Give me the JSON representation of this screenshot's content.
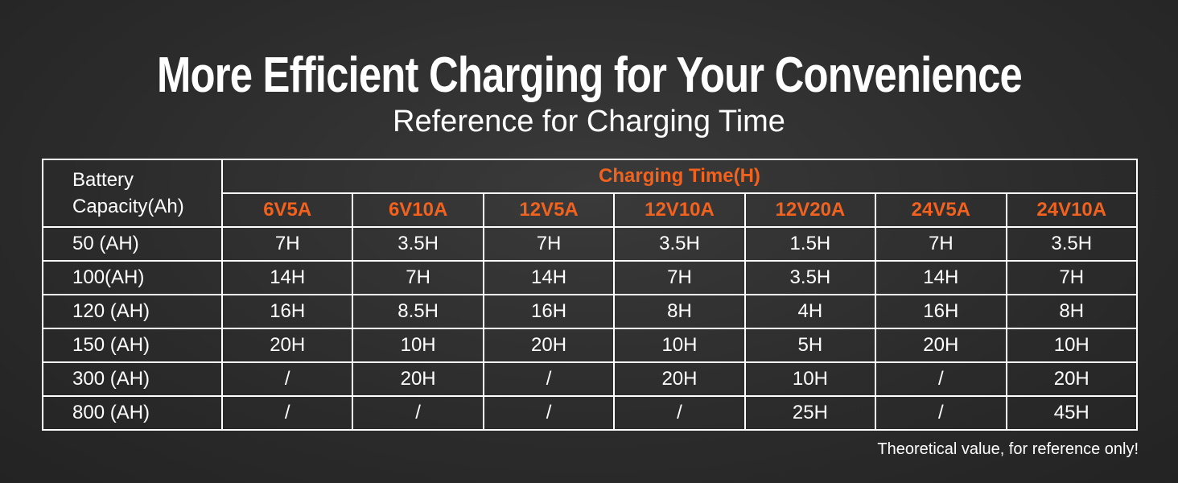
{
  "header": {
    "title": "More Efficient Charging for Your Convenience",
    "subtitle": "Reference for Charging Time"
  },
  "table": {
    "corner_lines": [
      "Battery",
      "Capacity(Ah)"
    ],
    "group_header": "Charging Time(H)",
    "columns": [
      "6V5A",
      "6V10A",
      "12V5A",
      "12V10A",
      "12V20A",
      "24V5A",
      "24V10A"
    ],
    "rows": [
      [
        "50 (AH)",
        "7H",
        "3.5H",
        "7H",
        "3.5H",
        "1.5H",
        "7H",
        "3.5H"
      ],
      [
        "100(AH)",
        "14H",
        "7H",
        "14H",
        "7H",
        "3.5H",
        "14H",
        "7H"
      ],
      [
        "120 (AH)",
        "16H",
        "8.5H",
        "16H",
        "8H",
        "4H",
        "16H",
        "8H"
      ],
      [
        "150 (AH)",
        "20H",
        "10H",
        "20H",
        "10H",
        "5H",
        "20H",
        "10H"
      ],
      [
        "300 (AH)",
        "/",
        "20H",
        "/",
        "20H",
        "10H",
        "/",
        "20H"
      ],
      [
        "800 (AH)",
        "/",
        "/",
        "/",
        "/",
        "25H",
        "/",
        "45H"
      ]
    ]
  },
  "footnote": "Theoretical value, for reference only!"
}
